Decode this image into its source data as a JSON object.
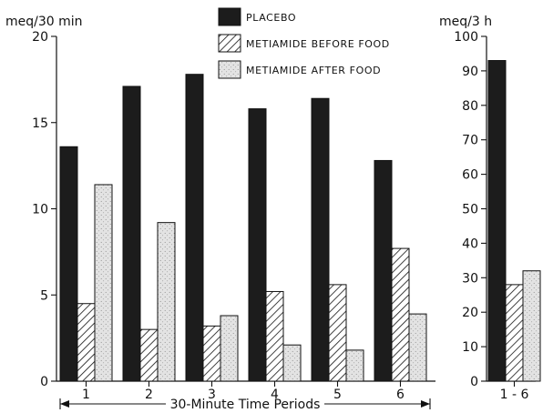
{
  "colors": {
    "placebo": "#1c1c1c",
    "before": "#ffffff",
    "after": "#e3e3e3",
    "axis": "#111111"
  },
  "legend": {
    "placement": "top-center",
    "items": [
      {
        "label": "PLACEBO",
        "pattern": "solid"
      },
      {
        "label": "METIAMIDE BEFORE FOOD",
        "pattern": "hatched"
      },
      {
        "label": "METIAMIDE AFTER FOOD",
        "pattern": "stippled"
      }
    ]
  },
  "chart_data": [
    {
      "type": "bar",
      "ylabel": "meq/30 min",
      "xlabel": "30-Minute Time Periods",
      "ylim": [
        0,
        20
      ],
      "yticks": [
        0,
        5,
        10,
        15,
        20
      ],
      "categories": [
        "1",
        "2",
        "3",
        "4",
        "5",
        "6"
      ],
      "series": [
        {
          "name": "PLACEBO",
          "values": [
            13.6,
            17.1,
            17.8,
            15.8,
            16.4,
            12.8
          ]
        },
        {
          "name": "METIAMIDE BEFORE FOOD",
          "values": [
            4.5,
            3.0,
            3.2,
            5.2,
            5.6,
            7.7
          ]
        },
        {
          "name": "METIAMIDE AFTER FOOD",
          "values": [
            11.4,
            9.2,
            3.8,
            2.1,
            1.8,
            3.9
          ]
        }
      ],
      "grid": false
    },
    {
      "type": "bar",
      "ylabel": "meq/3 h",
      "ylim": [
        0,
        100
      ],
      "yticks": [
        0,
        10,
        20,
        30,
        40,
        50,
        60,
        70,
        80,
        90,
        100
      ],
      "categories": [
        "1 - 6"
      ],
      "series": [
        {
          "name": "PLACEBO",
          "values": [
            93
          ]
        },
        {
          "name": "METIAMIDE BEFORE FOOD",
          "values": [
            28
          ]
        },
        {
          "name": "METIAMIDE AFTER FOOD",
          "values": [
            32
          ]
        }
      ],
      "grid": false
    }
  ]
}
